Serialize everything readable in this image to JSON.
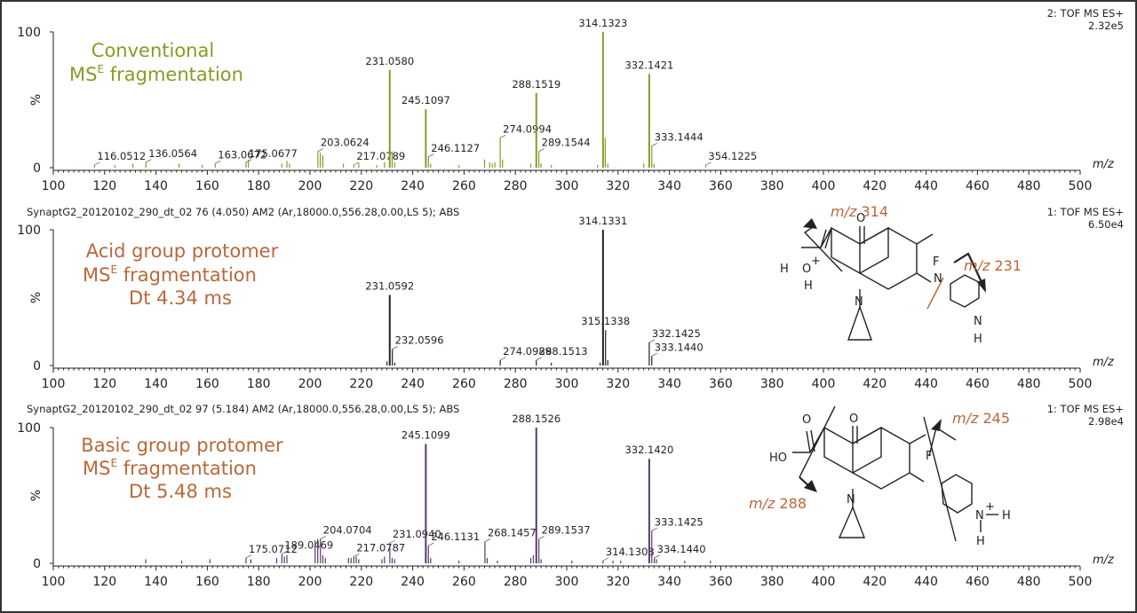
{
  "chart_data": [
    {
      "type": "bar",
      "header_left": "",
      "header_right": "2: TOF MS ES+",
      "intensity": "2.32e5",
      "ylabel": "%",
      "xlabel": "m/z",
      "ylim": [
        0,
        100
      ],
      "xlim": [
        100,
        500
      ],
      "y_ticks": [
        "100",
        "%",
        "0"
      ],
      "x_ticks": [
        100,
        120,
        140,
        160,
        180,
        200,
        220,
        240,
        260,
        280,
        300,
        320,
        340,
        360,
        380,
        400,
        420,
        440,
        460,
        480,
        500
      ],
      "title_lines": [
        "Conventional",
        "MS",
        "E",
        " fragmentation"
      ],
      "color": "#8a9a25",
      "peaks": [
        {
          "x": 116.0512,
          "y": 2,
          "label": "116.0512"
        },
        {
          "x": 136.0564,
          "y": 4,
          "label": "136.0564"
        },
        {
          "x": 163.0672,
          "y": 3,
          "label": "163.0672"
        },
        {
          "x": 175.0677,
          "y": 4,
          "label": "175.0677"
        },
        {
          "x": 203.0624,
          "y": 12,
          "label": "203.0624"
        },
        {
          "x": 217.0789,
          "y": 2,
          "label": "217.0789"
        },
        {
          "x": 231.058,
          "y": 72,
          "label": "231.0580"
        },
        {
          "x": 245.1097,
          "y": 43,
          "label": "245.1097"
        },
        {
          "x": 246.1127,
          "y": 8,
          "label": "246.1127"
        },
        {
          "x": 274.0994,
          "y": 22,
          "label": "274.0994"
        },
        {
          "x": 288.1519,
          "y": 55,
          "label": "288.1519"
        },
        {
          "x": 289.1544,
          "y": 12,
          "label": "289.1544"
        },
        {
          "x": 314.1323,
          "y": 100,
          "label": "314.1323"
        },
        {
          "x": 332.1421,
          "y": 69,
          "label": "332.1421"
        },
        {
          "x": 333.1444,
          "y": 16,
          "label": "333.1444"
        },
        {
          "x": 354.1225,
          "y": 2,
          "label": "354.1225"
        },
        {
          "x": 124,
          "y": 2
        },
        {
          "x": 131,
          "y": 3
        },
        {
          "x": 149,
          "y": 3
        },
        {
          "x": 158,
          "y": 2
        },
        {
          "x": 176,
          "y": 6
        },
        {
          "x": 189,
          "y": 3
        },
        {
          "x": 191,
          "y": 5
        },
        {
          "x": 192,
          "y": 3
        },
        {
          "x": 204,
          "y": 11
        },
        {
          "x": 205,
          "y": 9
        },
        {
          "x": 213,
          "y": 3
        },
        {
          "x": 219,
          "y": 3
        },
        {
          "x": 226,
          "y": 2
        },
        {
          "x": 229,
          "y": 4
        },
        {
          "x": 232,
          "y": 12
        },
        {
          "x": 233,
          "y": 4
        },
        {
          "x": 247,
          "y": 3
        },
        {
          "x": 258,
          "y": 2
        },
        {
          "x": 268,
          "y": 6
        },
        {
          "x": 270,
          "y": 4
        },
        {
          "x": 271,
          "y": 3
        },
        {
          "x": 272,
          "y": 4
        },
        {
          "x": 275,
          "y": 6
        },
        {
          "x": 286,
          "y": 3
        },
        {
          "x": 290,
          "y": 3
        },
        {
          "x": 294,
          "y": 2
        },
        {
          "x": 312,
          "y": 2
        },
        {
          "x": 315,
          "y": 22
        },
        {
          "x": 316,
          "y": 3
        },
        {
          "x": 330,
          "y": 3
        },
        {
          "x": 334,
          "y": 3
        }
      ]
    },
    {
      "type": "bar",
      "header_left": "SynaptG2_20120102_290_dt_02 76 (4.050) AM2 (Ar,18000.0,556.28,0.00,LS 5); ABS",
      "header_right": "1: TOF MS ES+",
      "intensity": "6.50e4",
      "ylabel": "%",
      "xlabel": "m/z",
      "ylim": [
        0,
        100
      ],
      "xlim": [
        100,
        500
      ],
      "y_ticks": [
        "100",
        "%",
        "0"
      ],
      "x_ticks": [
        100,
        120,
        140,
        160,
        180,
        200,
        220,
        240,
        260,
        280,
        300,
        320,
        340,
        360,
        380,
        400,
        420,
        440,
        460,
        480,
        500
      ],
      "title_lines": [
        "Acid group  protomer",
        "MS",
        "E",
        " fragmentation",
        "Dt 4.34 ms"
      ],
      "color": "#222222",
      "peaks": [
        {
          "x": 231.0592,
          "y": 52,
          "label": "231.0592"
        },
        {
          "x": 232.0596,
          "y": 12,
          "label": "232.0596"
        },
        {
          "x": 274.0989,
          "y": 4,
          "label": "274.0989"
        },
        {
          "x": 288.1513,
          "y": 4,
          "label": "288.1513"
        },
        {
          "x": 314.1331,
          "y": 100,
          "label": "314.1331"
        },
        {
          "x": 315.1338,
          "y": 26,
          "label": "315.1338"
        },
        {
          "x": 332.1425,
          "y": 17,
          "label": "332.1425"
        },
        {
          "x": 333.144,
          "y": 7,
          "label": "333.1440"
        },
        {
          "x": 230,
          "y": 3
        },
        {
          "x": 233,
          "y": 2
        },
        {
          "x": 294,
          "y": 2
        },
        {
          "x": 316,
          "y": 4
        },
        {
          "x": 313,
          "y": 2
        }
      ]
    },
    {
      "type": "bar",
      "header_left": "SynaptG2_20120102_290_dt_02 97 (5.184) AM2 (Ar,18000.0,556.28,0.00,LS 5); ABS",
      "header_right": "1: TOF MS ES+",
      "intensity": "2.98e4",
      "ylabel": "%",
      "xlabel": "m/z",
      "ylim": [
        0,
        100
      ],
      "xlim": [
        100,
        500
      ],
      "y_ticks": [
        "100",
        "%",
        "0"
      ],
      "x_ticks": [
        100,
        120,
        140,
        160,
        180,
        200,
        220,
        240,
        260,
        280,
        300,
        320,
        340,
        360,
        380,
        400,
        420,
        440,
        460,
        480,
        500
      ],
      "title_lines": [
        "Basic group  protomer",
        "MS",
        "E",
        " fragmentation",
        "Dt 5.48 ms"
      ],
      "color": "#5a3a6e",
      "peaks": [
        {
          "x": 175.0712,
          "y": 4,
          "label": "175.0712"
        },
        {
          "x": 189.0469,
          "y": 7,
          "label": "189.0469"
        },
        {
          "x": 204.0704,
          "y": 18,
          "label": "204.0704"
        },
        {
          "x": 217.0787,
          "y": 5,
          "label": "217.0787"
        },
        {
          "x": 231.094,
          "y": 15,
          "label": "231.0940"
        },
        {
          "x": 245.1099,
          "y": 88,
          "label": "245.1099"
        },
        {
          "x": 246.1131,
          "y": 13,
          "label": "246.1131"
        },
        {
          "x": 268.1457,
          "y": 16,
          "label": "268.1457"
        },
        {
          "x": 288.1526,
          "y": 100,
          "label": "288.1526"
        },
        {
          "x": 289.1537,
          "y": 18,
          "label": "289.1537"
        },
        {
          "x": 314.1308,
          "y": 2,
          "label": "314.1308"
        },
        {
          "x": 332.142,
          "y": 77,
          "label": "332.1420"
        },
        {
          "x": 333.1425,
          "y": 24,
          "label": "333.1425"
        },
        {
          "x": 334.144,
          "y": 4,
          "label": "334.1440"
        },
        {
          "x": 136,
          "y": 3
        },
        {
          "x": 150,
          "y": 2
        },
        {
          "x": 161,
          "y": 3
        },
        {
          "x": 177,
          "y": 3
        },
        {
          "x": 187,
          "y": 4
        },
        {
          "x": 190,
          "y": 5
        },
        {
          "x": 191,
          "y": 6
        },
        {
          "x": 202,
          "y": 17
        },
        {
          "x": 203,
          "y": 18
        },
        {
          "x": 205,
          "y": 6
        },
        {
          "x": 206,
          "y": 4
        },
        {
          "x": 215,
          "y": 4
        },
        {
          "x": 216,
          "y": 4
        },
        {
          "x": 218,
          "y": 5
        },
        {
          "x": 219,
          "y": 3
        },
        {
          "x": 228,
          "y": 3
        },
        {
          "x": 229,
          "y": 5
        },
        {
          "x": 232,
          "y": 4
        },
        {
          "x": 233,
          "y": 3
        },
        {
          "x": 247,
          "y": 4
        },
        {
          "x": 258,
          "y": 2
        },
        {
          "x": 269,
          "y": 4
        },
        {
          "x": 273,
          "y": 2
        },
        {
          "x": 286,
          "y": 4
        },
        {
          "x": 287,
          "y": 6
        },
        {
          "x": 290,
          "y": 3
        },
        {
          "x": 302,
          "y": 2
        },
        {
          "x": 318,
          "y": 2
        },
        {
          "x": 321,
          "y": 2
        },
        {
          "x": 335,
          "y": 3
        },
        {
          "x": 346,
          "y": 2
        },
        {
          "x": 356,
          "y": 2
        }
      ]
    }
  ],
  "annotations": {
    "acid_mz314": [
      "m/z",
      " 314"
    ],
    "acid_mz231": [
      "m/z",
      " 231"
    ],
    "basic_mz245": [
      "m/z",
      " 245"
    ],
    "basic_mz288": [
      "m/z",
      " 288"
    ],
    "acid_atoms": {
      "h1": "H",
      "o": "O",
      "plus": "+",
      "h2": "H",
      "o2": "O",
      "f": "F",
      "n1": "N",
      "n2": "N",
      "n3": "N",
      "h3": "H"
    },
    "basic_atoms": {
      "ho": "HO",
      "o1": "O",
      "o2": "O",
      "f": "F",
      "n1": "N",
      "n2": "N",
      "plus": "+",
      "h1": "H",
      "h2": "H"
    }
  },
  "colors": {
    "olive": "#8a9a25",
    "orange": "#b8683a",
    "black": "#222222",
    "purple": "#5a3a6e"
  }
}
